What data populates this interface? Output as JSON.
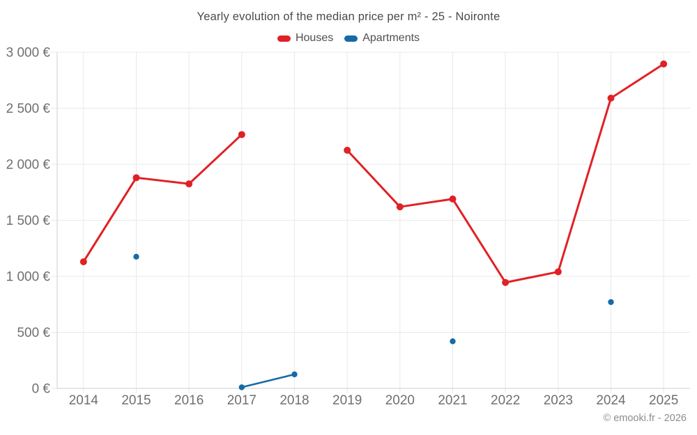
{
  "title": "Yearly evolution of the median price per m² - 25 - Noironte",
  "footer": "© emooki.fr - 2026",
  "legend": {
    "items": [
      {
        "label": "Houses",
        "color": "#e02126"
      },
      {
        "label": "Apartments",
        "color": "#166ba5"
      }
    ]
  },
  "chart_data": {
    "type": "line",
    "title": "Yearly evolution of the median price per m² - 25 - Noironte",
    "categories": [
      "2014",
      "2015",
      "2016",
      "2017",
      "2018",
      "2019",
      "2020",
      "2021",
      "2022",
      "2023",
      "2024",
      "2025"
    ],
    "series": [
      {
        "name": "Houses",
        "color": "#e02126",
        "values": [
          1130,
          1880,
          1825,
          2265,
          null,
          2125,
          1620,
          1690,
          945,
          1040,
          2590,
          2895
        ]
      },
      {
        "name": "Apartments",
        "color": "#166ba5",
        "values": [
          null,
          1175,
          null,
          10,
          125,
          null,
          null,
          420,
          null,
          null,
          770,
          null
        ]
      }
    ],
    "xlabel": "",
    "ylabel": "",
    "ylim": [
      0,
      3000
    ],
    "ytick_step": 500,
    "ytick_suffix": " €",
    "grid": true,
    "legend_position": "top-center",
    "credits": "© emooki.fr - 2026"
  }
}
